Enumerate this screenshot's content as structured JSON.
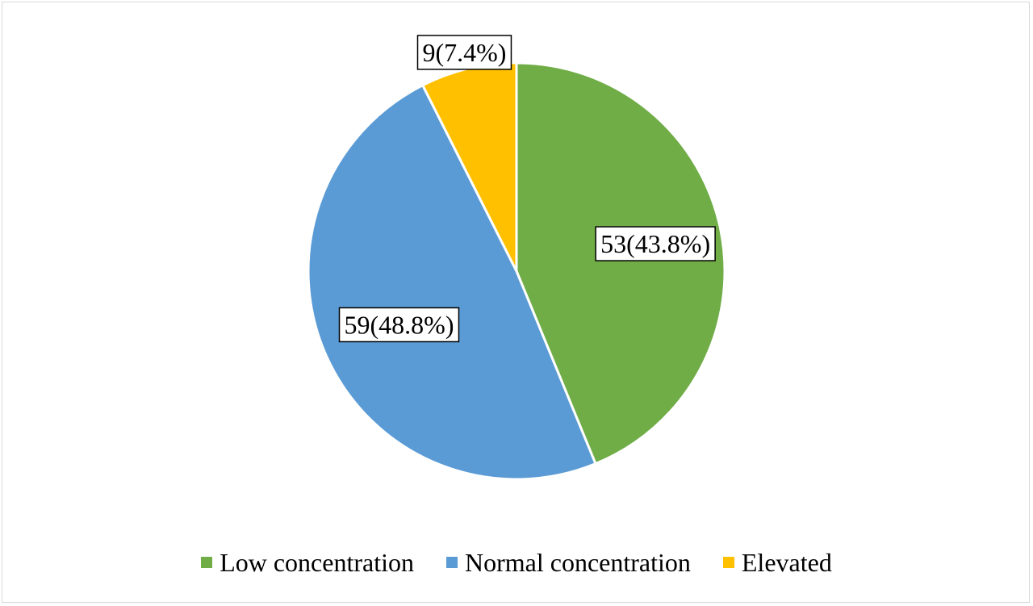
{
  "chart_data": {
    "type": "pie",
    "categories": [
      "Low concentration",
      "Normal concentration",
      "Elevated"
    ],
    "values": [
      53,
      59,
      9
    ],
    "percentages": [
      43.8,
      48.8,
      7.4
    ],
    "data_labels": [
      "53(43.8%)",
      "59(48.8%)",
      "9(7.4%)"
    ],
    "colors": [
      "#70ad47",
      "#5b9bd5",
      "#ffc000"
    ],
    "start_angle_deg": 0,
    "direction": "clockwise",
    "legend_placement": "bottom"
  },
  "legend": {
    "items": [
      {
        "label": "Low concentration",
        "color": "#70ad47"
      },
      {
        "label": "Normal concentration",
        "color": "#5b9bd5"
      },
      {
        "label": "Elevated",
        "color": "#ffc000"
      }
    ]
  }
}
